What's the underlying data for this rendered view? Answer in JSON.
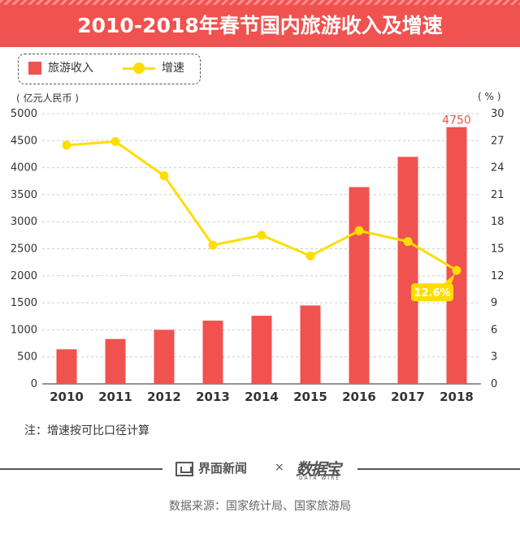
{
  "title": "2010-2018年春节国内旅游收入及增速",
  "legend": {
    "bar_label": "旅游收入",
    "line_label": "增速"
  },
  "units": {
    "left": "( 亿元人民币 )",
    "right": "( % )"
  },
  "colors": {
    "bar": "#f0524f",
    "line": "#ffdd00",
    "header": "#f0524f",
    "grid": "#cccccc"
  },
  "chart_data": {
    "type": "bar",
    "categories": [
      "2010",
      "2011",
      "2012",
      "2013",
      "2014",
      "2015",
      "2016",
      "2017",
      "2018"
    ],
    "series": [
      {
        "name": "旅游收入",
        "type": "bar",
        "axis": "left",
        "values": [
          640,
          830,
          1000,
          1170,
          1260,
          1450,
          3640,
          4200,
          4750
        ]
      },
      {
        "name": "增速",
        "type": "line",
        "axis": "right",
        "values": [
          26.5,
          26.9,
          23.1,
          15.4,
          16.5,
          14.2,
          17.0,
          15.8,
          12.6
        ]
      }
    ],
    "left_axis": {
      "ylim": [
        0,
        5000
      ],
      "ticks": [
        0,
        500,
        1000,
        1500,
        2000,
        2500,
        3000,
        3500,
        4000,
        4500,
        5000
      ]
    },
    "right_axis": {
      "ylim": [
        0,
        30
      ],
      "ticks": [
        0,
        3,
        6,
        9,
        12,
        15,
        18,
        21,
        24,
        27,
        30
      ]
    },
    "annotations": [
      {
        "text": "4750",
        "series": "旅游收入",
        "index": 8
      },
      {
        "text": "12.6%",
        "series": "增速",
        "index": 8
      }
    ],
    "grid": true,
    "legend_position": "top-left"
  },
  "note": "注：增速按可比口径计算",
  "footer": {
    "brand": "界面新闻",
    "separator": "×",
    "logo": "数据宝",
    "logo_sub": "DATA WIRE",
    "source": "数据来源：国家统计局、国家旅游局"
  }
}
